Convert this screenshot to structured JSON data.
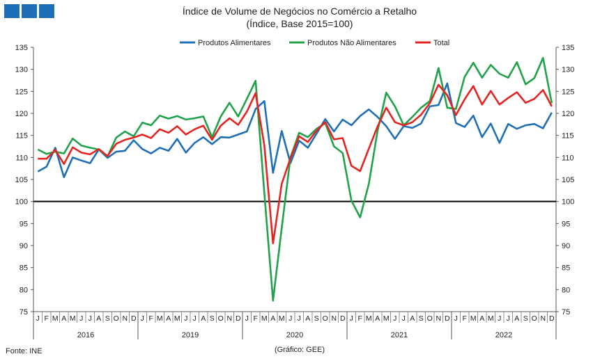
{
  "header": {
    "logo_color": "#1f6fb7",
    "source": "Fonte: INE",
    "credit": "(Gráfico: GEE)"
  },
  "chart_data": {
    "type": "line",
    "title": "Índice de Volume de Negócios no Comércio a Retalho",
    "subtitle": "(Índice, Base 2015=100)",
    "ylim": [
      75,
      135
    ],
    "ytick_step": 5,
    "dual_y_axis": true,
    "grid": false,
    "legend": "top-center",
    "reference_line": 100,
    "month_labels": [
      "J",
      "F",
      "M",
      "A",
      "M",
      "J",
      "J",
      "A",
      "S",
      "O",
      "N",
      "D"
    ],
    "years": [
      "2016",
      "2019",
      "2020",
      "2021",
      "2022"
    ],
    "series": [
      {
        "name": "Produtos Alimentares",
        "color": "#1f6fb7",
        "values": [
          106.8,
          107.9,
          112.2,
          105.5,
          110.0,
          109.3,
          108.7,
          111.8,
          109.9,
          111.3,
          111.5,
          113.9,
          111.9,
          110.9,
          112.2,
          111.5,
          114.2,
          111.1,
          113.3,
          114.6,
          113.0,
          114.6,
          114.5,
          115.2,
          115.9,
          121.0,
          122.8,
          106.5,
          116.0,
          108.7,
          113.8,
          112.2,
          115.4,
          118.7,
          115.9,
          118.6,
          117.3,
          119.4,
          120.9,
          119.2,
          117.1,
          114.2,
          117.1,
          116.7,
          117.7,
          121.6,
          121.9,
          126.8,
          117.8,
          116.9,
          119.5,
          114.6,
          117.7,
          113.3,
          117.6,
          116.5,
          117.3,
          117.6,
          116.6,
          120.2
        ]
      },
      {
        "name": "Produtos Não Alimentares",
        "color": "#21a24a",
        "values": [
          111.8,
          110.8,
          111.3,
          110.9,
          114.3,
          112.7,
          112.2,
          111.8,
          110.2,
          114.5,
          115.9,
          114.8,
          117.9,
          117.3,
          119.5,
          118.8,
          119.4,
          118.6,
          118.9,
          119.3,
          114.6,
          119.3,
          122.4,
          119.3,
          123.3,
          127.4,
          102.0,
          77.5,
          94.0,
          110.0,
          115.6,
          114.6,
          116.5,
          117.8,
          112.5,
          111.0,
          100.2,
          96.4,
          104.0,
          116.0,
          124.7,
          121.6,
          117.3,
          119.2,
          121.3,
          122.8,
          130.3,
          121.3,
          121.0,
          128.3,
          131.5,
          128.1,
          131.0,
          129.0,
          128.1,
          131.6,
          126.6,
          128.0,
          132.6,
          122.3
        ]
      },
      {
        "name": "Total",
        "color": "#e52421",
        "values": [
          109.7,
          109.7,
          111.7,
          108.5,
          112.3,
          111.1,
          110.7,
          111.9,
          110.3,
          113.1,
          114.0,
          114.5,
          115.2,
          114.4,
          116.4,
          115.6,
          117.1,
          115.2,
          116.4,
          117.2,
          114.0,
          117.2,
          118.9,
          117.4,
          120.4,
          124.6,
          112.8,
          90.5,
          104.0,
          109.8,
          114.8,
          113.5,
          116.1,
          118.0,
          114.1,
          114.4,
          108.1,
          106.9,
          112.0,
          117.0,
          121.3,
          118.0,
          117.3,
          118.0,
          119.7,
          122.3,
          126.5,
          124.1,
          119.6,
          123.2,
          126.2,
          122.0,
          125.1,
          122.0,
          123.5,
          124.8,
          122.4,
          123.3,
          125.3,
          121.6
        ]
      }
    ]
  }
}
